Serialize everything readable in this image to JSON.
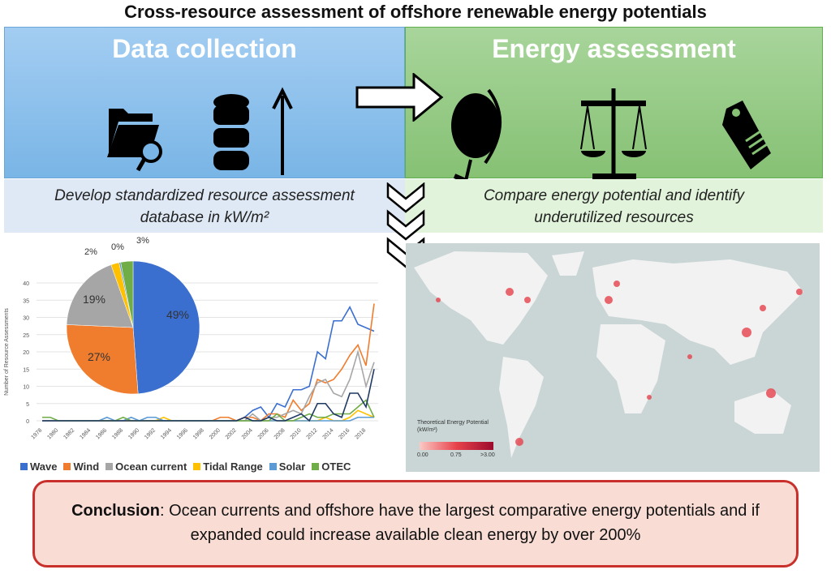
{
  "title": "Cross-resource assessment of offshore renewable energy potentials",
  "left_panel": {
    "heading": "Data collection",
    "icons": [
      "folder-search-icon",
      "database-upload-icon"
    ],
    "caption_line1": "Develop standardized resource assessment",
    "caption_line2": "database in kW/m²",
    "color": "#79b5e6"
  },
  "right_panel": {
    "heading": "Energy assessment",
    "icons": [
      "globe-icon",
      "scales-icon",
      "price-tag-icon"
    ],
    "caption_line1": "Compare energy potential and identify",
    "caption_line2": "underutilized resources",
    "color": "#86c174"
  },
  "map": {
    "legend_title": "Theoretical Energy Potential",
    "legend_unit": "(kW/m²)",
    "legend_ticks": [
      "0.00",
      "0.75",
      ">3.00"
    ],
    "colors": [
      "#fbc9c4",
      "#9c0b2c"
    ]
  },
  "conclusion": {
    "label": "Conclusion",
    "text": ": Ocean currents and offshore have the largest comparative energy potentials and if expanded could increase available clean energy by over 200%"
  },
  "chart_data": [
    {
      "type": "line",
      "ylabel": "Number of Resource Assessments",
      "ylim": [
        0,
        40
      ],
      "yticks": [
        0,
        5,
        10,
        15,
        20,
        25,
        30,
        35,
        40
      ],
      "grid": true,
      "x_range": [
        1978,
        2019
      ],
      "xtick_labels": [
        "1978",
        "1980",
        "1982",
        "1984",
        "1986",
        "1988",
        "1990",
        "1992",
        "1994",
        "1996",
        "1998",
        "2000",
        "2002",
        "2004",
        "2006",
        "2008",
        "2010",
        "2012",
        "2014",
        "2016",
        "2018"
      ],
      "legend": "bottom",
      "series": [
        {
          "name": "Wave",
          "color": "#3a6fd0",
          "points": {
            "2003": 1,
            "2004": 3,
            "2005": 4,
            "2006": 1,
            "2007": 5,
            "2008": 4,
            "2009": 9,
            "2010": 9,
            "2011": 10,
            "2012": 20,
            "2013": 18,
            "2014": 29,
            "2015": 29,
            "2016": 33,
            "2017": 28,
            "2018": 27,
            "2019": 26
          }
        },
        {
          "name": "Wind",
          "color": "#f07d2e",
          "points": {
            "2000": 1,
            "2001": 1,
            "2002": 0,
            "2003": 1,
            "2004": 1,
            "2005": 0,
            "2006": 2,
            "2007": 2,
            "2008": 1,
            "2009": 6,
            "2010": 3,
            "2011": 5,
            "2012": 12,
            "2013": 11,
            "2014": 12,
            "2015": 15,
            "2016": 19,
            "2017": 22,
            "2018": 16,
            "2019": 34
          }
        },
        {
          "name": "Ocean current",
          "color": "#a6a6a6",
          "points": {
            "2004": 2,
            "2005": 0,
            "2006": 1,
            "2007": 1,
            "2008": 2,
            "2009": 3,
            "2010": 2,
            "2011": 7,
            "2012": 11,
            "2013": 12,
            "2014": 8,
            "2015": 7,
            "2016": 12,
            "2017": 20,
            "2018": 10,
            "2019": 17
          }
        },
        {
          "name": "Tidal Range",
          "color": "#ffc000",
          "points": {
            "1993": 1,
            "2012": 0,
            "2013": 1,
            "2016": 1,
            "2017": 3,
            "2018": 2,
            "2019": 1
          }
        },
        {
          "name": "Solar",
          "color": "#5b9bd5",
          "points": {
            "1986": 1,
            "1989": 1,
            "1991": 1,
            "1992": 1,
            "2017": 1,
            "2018": 1,
            "2019": 1
          }
        },
        {
          "name": "OTEC",
          "color": "#70ad47",
          "points": {
            "1978": 1,
            "1979": 1,
            "1988": 1,
            "2007": 2,
            "2010": 1,
            "2011": 2,
            "2012": 1,
            "2013": 1,
            "2014": 2,
            "2015": 2,
            "2016": 2,
            "2017": 4,
            "2018": 6,
            "2019": 1
          }
        },
        {
          "color": "#1f3864",
          "points": {
            "2003": 1,
            "2006": 1,
            "2009": 1,
            "2010": 2,
            "2011": 0,
            "2012": 5,
            "2013": 5,
            "2014": 2,
            "2015": 1,
            "2016": 8,
            "2017": 8,
            "2018": 4,
            "2019": 15
          }
        }
      ]
    },
    {
      "type": "pie",
      "slices": [
        {
          "name": "Wave",
          "value": 49,
          "label": "49%",
          "color": "#3a6fd0"
        },
        {
          "name": "Wind",
          "value": 27,
          "label": "27%",
          "color": "#f07d2e"
        },
        {
          "name": "Ocean current",
          "value": 19,
          "label": "19%",
          "color": "#a6a6a6"
        },
        {
          "name": "Tidal Range",
          "value": 2,
          "label": "2%",
          "color": "#ffc000"
        },
        {
          "name": "Solar",
          "value": 0.4,
          "label": "0%",
          "color": "#5b9bd5"
        },
        {
          "name": "OTEC",
          "value": 3,
          "label": "3%",
          "color": "#70ad47"
        }
      ]
    }
  ]
}
